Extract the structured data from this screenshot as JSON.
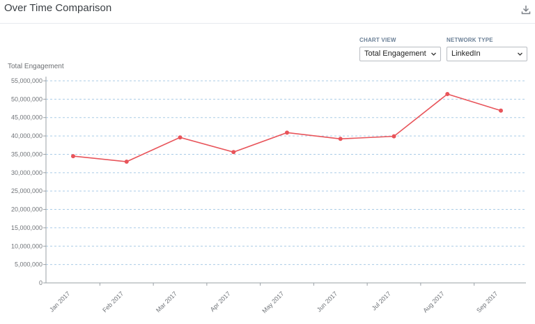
{
  "header": {
    "title": "Over Time Comparison",
    "download_icon": "download-icon"
  },
  "controls": {
    "chart_view": {
      "label": "CHART VIEW",
      "value": "Total Engagement"
    },
    "network_type": {
      "label": "NETWORK TYPE",
      "value": "LinkedIn"
    }
  },
  "colors": {
    "line": "#e8545a",
    "grid": "#a9cbe6",
    "axis": "#9aa0a6",
    "label_accent": "#6a7f96"
  },
  "chart_data": {
    "type": "line",
    "title": "",
    "xlabel": "",
    "ylabel": "Total Engagement",
    "categories": [
      "Jan 2017",
      "Feb 2017",
      "Mar 2017",
      "Apr 2017",
      "May 2017",
      "Jun 2017",
      "Jul 2017",
      "Aug 2017",
      "Sep 2017"
    ],
    "series": [
      {
        "values": [
          34500000,
          33000000,
          39600000,
          35600000,
          40900000,
          39200000,
          39900000,
          51400000,
          46900000
        ]
      }
    ],
    "ylim": [
      0,
      55000000
    ],
    "yticks": [
      0,
      5000000,
      10000000,
      15000000,
      20000000,
      25000000,
      30000000,
      35000000,
      40000000,
      45000000,
      50000000,
      55000000
    ],
    "ytick_labels": [
      "0",
      "5,000,000",
      "10,000,000",
      "15,000,000",
      "20,000,000",
      "25,000,000",
      "30,000,000",
      "35,000,000",
      "40,000,000",
      "45,000,000",
      "50,000,000",
      "55,000,000"
    ],
    "grid": true,
    "legend": "none"
  }
}
